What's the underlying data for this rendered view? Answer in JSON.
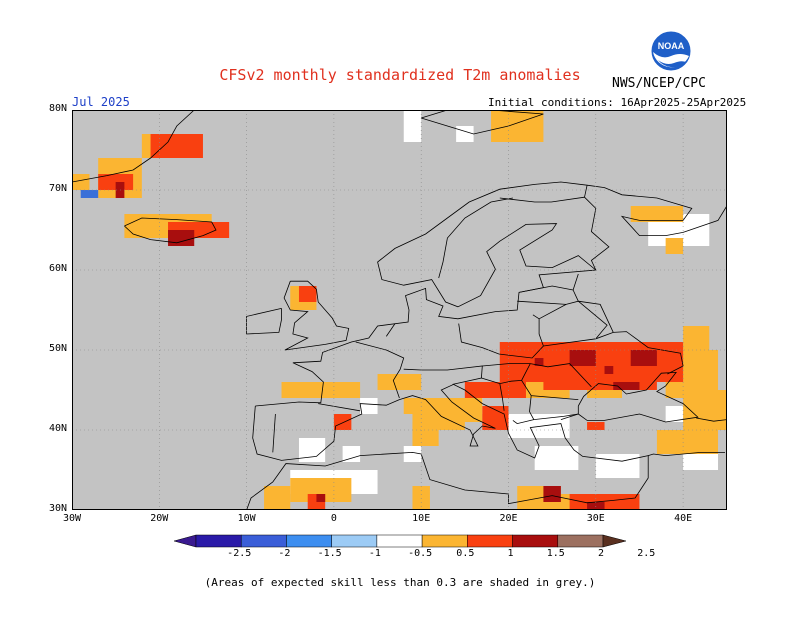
{
  "title": "CFSv2 monthly standardized T2m anomalies",
  "agency": "NWS/NCEP/CPC",
  "logo_text": "NOAA",
  "month": "Jul 2025",
  "initial_conditions": "Initial conditions: 16Apr2025-25Apr2025",
  "note": "(Areas of expected skill less than 0.3 are shaded in grey.)",
  "lat_labels": [
    "80N",
    "70N",
    "60N",
    "50N",
    "40N",
    "30N"
  ],
  "lon_labels": [
    "30W",
    "20W",
    "10W",
    "0",
    "10E",
    "20E",
    "30E",
    "40E"
  ],
  "colorbar": {
    "ticks": [
      "-2.5",
      "-2",
      "-1.5",
      "-1",
      "-0.5",
      "0.5",
      "1",
      "1.5",
      "2",
      "2.5"
    ],
    "colors": [
      "#2a1aa8",
      "#3a5ed8",
      "#3d8ef0",
      "#9ccbf5",
      "#ffffff",
      "#fbb532",
      "#f94010",
      "#a80e0e",
      "#9c7060"
    ],
    "under_color": "#3a1a90",
    "over_color": "#5a3020"
  },
  "colors": {
    "grey": "#c3c3c3",
    "white": "#ffffff",
    "light_orange": "#fbb532",
    "red_orange": "#f94010",
    "dark_red": "#a80e0e",
    "blue": "#3a70d8",
    "title_red": "#e0301e",
    "month_blue": "#1e40c8"
  }
}
